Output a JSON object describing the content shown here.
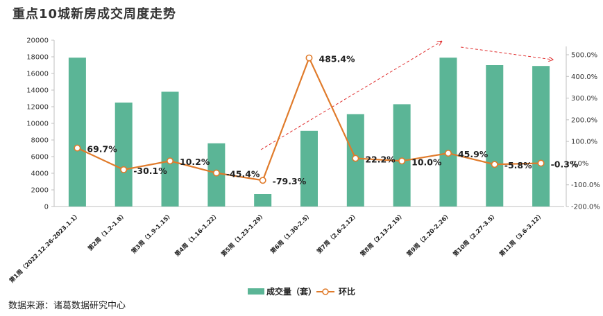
{
  "title": "重点10城新房成交周度走势",
  "source": "数据来源：诸葛数据研究中心",
  "colors": {
    "bar": "#5bb596",
    "line": "#e07b2b",
    "arrow": "#e03030"
  },
  "chart_data": {
    "type": "bar+line",
    "categories": [
      "第1周（2022.12.26-2023.1.1）",
      "第2周（1.2-1.8）",
      "第3周（1.9-1.15）",
      "第4周（1.16-1.22）",
      "第5周（1.23-1.29）",
      "第6周（1.30-2.5）",
      "第7周（2.6-2.12）",
      "第8周（2.13-2.19）",
      "第9周（2.20-2.26）",
      "第10周（2.27-3.5）",
      "第11周（3.6-3.12）"
    ],
    "series": [
      {
        "name": "成交量（套）",
        "type": "bar",
        "axis": "left",
        "values": [
          17900,
          12500,
          13800,
          7600,
          1500,
          9100,
          11100,
          12300,
          17900,
          17000,
          16900
        ]
      },
      {
        "name": "环比",
        "type": "line",
        "axis": "right",
        "values": [
          69.7,
          -30.1,
          10.2,
          -45.4,
          -79.3,
          485.4,
          22.2,
          10.0,
          45.9,
          -5.8,
          -0.3
        ],
        "labels": [
          "69.7%",
          "-30.1%",
          "10.2%",
          "-45.4%",
          "-79.3%",
          "485.4%",
          "22.2%",
          "10.0%",
          "45.9%",
          "-5.8%",
          "-0.3%"
        ]
      }
    ],
    "left_axis": {
      "ylim": [
        0,
        20000
      ],
      "ticks": [
        "0",
        "2000",
        "4000",
        "6000",
        "8000",
        "10000",
        "12000",
        "14000",
        "16000",
        "18000",
        "20000"
      ]
    },
    "right_axis": {
      "ylim": [
        -200,
        500
      ],
      "ticks": [
        "-200.0%",
        "-100.0%",
        "0.0%",
        "100.0%",
        "200.0%",
        "300.0%",
        "400.0%",
        "500.0%"
      ]
    },
    "legend_position": "bottom",
    "grid": false
  }
}
